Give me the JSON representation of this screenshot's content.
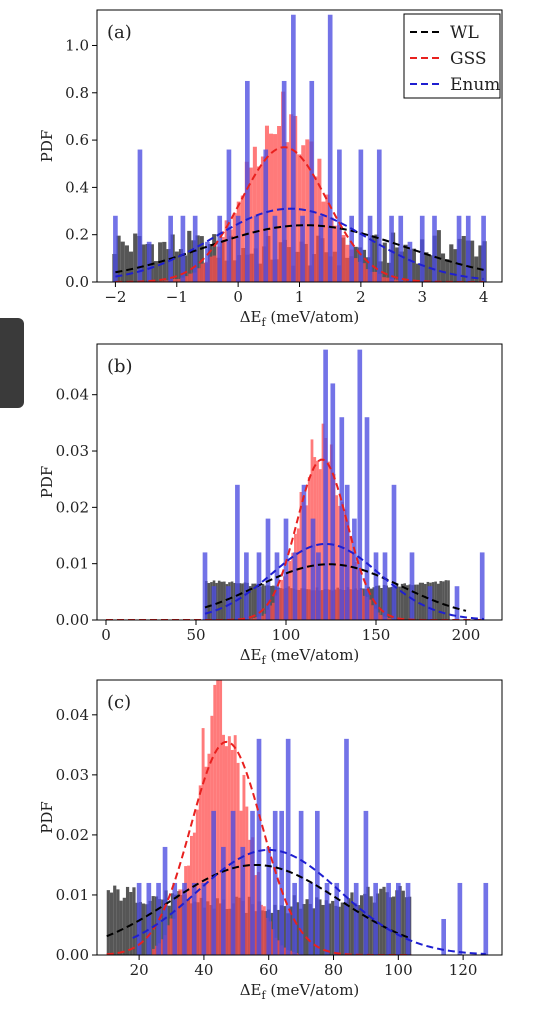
{
  "colors": {
    "wl": "#000000",
    "gss": "#e8211f",
    "enum": "#1f1fd0",
    "wl_bar": "#4d4d4d",
    "gss_bar": "#ff4d4d",
    "enum_bar": "#4b4be0"
  },
  "legend": [
    {
      "label": "WL",
      "color": "#000000"
    },
    {
      "label": "GSS",
      "color": "#e8211f"
    },
    {
      "label": "Enum",
      "color": "#1f1fd0"
    }
  ],
  "chart_data": [
    {
      "type": "bar",
      "panel_label": "(a)",
      "xlabel": "ΔE",
      "xlabel_sub": "f",
      "xlabel_unit": " (meV/atom)",
      "ylabel": "PDF",
      "xlim": [
        -2.3,
        4.3
      ],
      "ylim": [
        0,
        1.15
      ],
      "xticks": [
        -2,
        -1,
        0,
        1,
        2,
        3,
        4
      ],
      "xtick_labels": [
        "−2",
        "−1",
        "0",
        "1",
        "2",
        "3",
        "4"
      ],
      "yticks": [
        0.0,
        0.2,
        0.4,
        0.6,
        0.8,
        1.0
      ],
      "ytick_labels": [
        "0.0",
        "0.2",
        "0.4",
        "0.6",
        "0.8",
        "1.0"
      ],
      "series": [
        {
          "name": "WL",
          "style": "dashed-fit",
          "mean": 1.1,
          "sd": 1.65,
          "peak": 0.24,
          "x_range": [
            -2.0,
            4.0
          ]
        },
        {
          "name": "GSS",
          "style": "dashed-fit",
          "mean": 0.75,
          "sd": 0.7,
          "peak": 0.57,
          "x_range": [
            -2.0,
            4.0
          ]
        },
        {
          "name": "Enum",
          "style": "dashed-fit",
          "mean": 0.85,
          "sd": 1.25,
          "peak": 0.31,
          "x_range": [
            -2.0,
            4.0
          ]
        }
      ],
      "histograms": {
        "wl": {
          "range": [
            -2.05,
            4.05
          ],
          "bins": 90,
          "base": 0.17,
          "amp": 0.07,
          "mean": 1.1,
          "sd": 1.65
        },
        "gss": {
          "range": [
            -1.6,
            3.0
          ],
          "bins": 70,
          "mean": 0.75,
          "sd": 0.62,
          "peak": 0.72
        },
        "enum_spikes": [
          [
            -2.0,
            0.28
          ],
          [
            -1.6,
            0.56
          ],
          [
            -1.45,
            0.17
          ],
          [
            -1.1,
            0.28
          ],
          [
            -0.9,
            0.28
          ],
          [
            -0.7,
            0.28
          ],
          [
            -0.5,
            0.17
          ],
          [
            -0.3,
            0.28
          ],
          [
            -0.15,
            0.56
          ],
          [
            0.0,
            0.28
          ],
          [
            0.15,
            0.85
          ],
          [
            0.3,
            0.28
          ],
          [
            0.45,
            0.56
          ],
          [
            0.6,
            0.28
          ],
          [
            0.75,
            0.85
          ],
          [
            0.9,
            1.13
          ],
          [
            1.05,
            0.28
          ],
          [
            1.2,
            0.85
          ],
          [
            1.35,
            0.28
          ],
          [
            1.5,
            1.13
          ],
          [
            1.65,
            0.56
          ],
          [
            1.85,
            0.28
          ],
          [
            2.0,
            0.56
          ],
          [
            2.15,
            0.28
          ],
          [
            2.3,
            0.56
          ],
          [
            2.5,
            0.28
          ],
          [
            2.65,
            0.28
          ],
          [
            2.8,
            0.17
          ],
          [
            3.0,
            0.28
          ],
          [
            3.2,
            0.28
          ],
          [
            3.6,
            0.28
          ],
          [
            3.75,
            0.28
          ],
          [
            4.0,
            0.28
          ]
        ]
      }
    },
    {
      "type": "bar",
      "panel_label": "(b)",
      "xlabel": "ΔE",
      "xlabel_sub": "f",
      "xlabel_unit": " (meV/atom)",
      "ylabel": "PDF",
      "xlim": [
        -5,
        220
      ],
      "ylim": [
        0,
        0.049
      ],
      "xticks": [
        0,
        50,
        100,
        150,
        200
      ],
      "xtick_labels": [
        "0",
        "50",
        "100",
        "150",
        "200"
      ],
      "yticks": [
        0.0,
        0.01,
        0.02,
        0.03,
        0.04
      ],
      "ytick_labels": [
        "0.00",
        "0.01",
        "0.02",
        "0.03",
        "0.04"
      ],
      "series": [
        {
          "name": "WL",
          "style": "dashed-fit",
          "mean": 124,
          "sd": 40,
          "peak": 0.0099,
          "x_range": [
            55,
            200
          ]
        },
        {
          "name": "GSS",
          "style": "dashed-fit",
          "mean": 120,
          "sd": 14,
          "peak": 0.0285,
          "x_range": [
            0,
            210
          ]
        },
        {
          "name": "Enum",
          "style": "dashed-fit",
          "mean": 122,
          "sd": 30,
          "peak": 0.0135,
          "x_range": [
            55,
            210
          ]
        }
      ],
      "histograms": {
        "wl": {
          "range": [
            55,
            191
          ],
          "bins": 95,
          "base": 0.0073,
          "amp": 0.0003,
          "mean": 124,
          "sd": 40
        },
        "gss": {
          "range": [
            60,
            175
          ],
          "bins": 75,
          "mean": 120,
          "sd": 12.5,
          "peak": 0.031
        },
        "enum_spikes": [
          [
            55,
            0.012
          ],
          [
            60,
            0.006
          ],
          [
            68,
            0.006
          ],
          [
            73,
            0.024
          ],
          [
            78,
            0.012
          ],
          [
            85,
            0.012
          ],
          [
            90,
            0.018
          ],
          [
            95,
            0.012
          ],
          [
            100,
            0.018
          ],
          [
            105,
            0.012
          ],
          [
            110,
            0.024
          ],
          [
            115,
            0.018
          ],
          [
            118,
            0.012
          ],
          [
            122,
            0.048
          ],
          [
            126,
            0.042
          ],
          [
            131,
            0.036
          ],
          [
            134,
            0.024
          ],
          [
            138,
            0.018
          ],
          [
            141,
            0.048
          ],
          [
            145,
            0.036
          ],
          [
            150,
            0.012
          ],
          [
            155,
            0.012
          ],
          [
            160,
            0.024
          ],
          [
            170,
            0.012
          ],
          [
            180,
            0.006
          ],
          [
            195,
            0.006
          ],
          [
            209,
            0.012
          ]
        ]
      }
    },
    {
      "type": "bar",
      "panel_label": "(c)",
      "xlabel": "ΔE",
      "xlabel_sub": "f",
      "xlabel_unit": " (meV/atom)",
      "ylabel": "PDF",
      "xlim": [
        7,
        132
      ],
      "ylim": [
        0,
        0.0458
      ],
      "xticks": [
        20,
        40,
        60,
        80,
        100,
        120
      ],
      "xtick_labels": [
        "20",
        "40",
        "60",
        "80",
        "100",
        "120"
      ],
      "yticks": [
        0.0,
        0.01,
        0.02,
        0.03,
        0.04
      ],
      "ytick_labels": [
        "0.00",
        "0.01",
        "0.02",
        "0.03",
        "0.04"
      ],
      "series": [
        {
          "name": "WL",
          "style": "dashed-fit",
          "mean": 56,
          "sd": 26,
          "peak": 0.015,
          "x_range": [
            10,
            104
          ]
        },
        {
          "name": "GSS",
          "style": "dashed-fit",
          "mean": 47,
          "sd": 11,
          "peak": 0.0355,
          "x_range": [
            10,
            104
          ]
        },
        {
          "name": "Enum",
          "style": "dashed-fit",
          "mean": 60,
          "sd": 22,
          "peak": 0.0175,
          "x_range": [
            18,
            127
          ]
        }
      ],
      "histograms": {
        "wl": {
          "range": [
            10,
            104
          ],
          "bins": 95,
          "base": 0.011,
          "amp": 0.0015,
          "mean": 56,
          "sd": 26
        },
        "gss": {
          "range": [
            24,
            78
          ],
          "bins": 60,
          "mean": 45,
          "sd": 7.5,
          "peak": 0.043
        },
        "enum_spikes": [
          [
            20,
            0.012
          ],
          [
            23,
            0.012
          ],
          [
            26,
            0.012
          ],
          [
            28,
            0.018
          ],
          [
            31,
            0.012
          ],
          [
            34,
            0.012
          ],
          [
            37,
            0.012
          ],
          [
            40,
            0.012
          ],
          [
            43,
            0.024
          ],
          [
            46,
            0.018
          ],
          [
            49,
            0.024
          ],
          [
            52,
            0.018
          ],
          [
            55,
            0.024
          ],
          [
            57,
            0.036
          ],
          [
            60,
            0.018
          ],
          [
            62,
            0.024
          ],
          [
            64,
            0.024
          ],
          [
            66,
            0.036
          ],
          [
            68,
            0.012
          ],
          [
            70,
            0.024
          ],
          [
            73,
            0.012
          ],
          [
            75,
            0.024
          ],
          [
            78,
            0.012
          ],
          [
            81,
            0.012
          ],
          [
            84,
            0.036
          ],
          [
            87,
            0.012
          ],
          [
            90,
            0.024
          ],
          [
            93,
            0.012
          ],
          [
            97,
            0.012
          ],
          [
            100,
            0.012
          ],
          [
            103,
            0.012
          ],
          [
            114,
            0.006
          ],
          [
            119,
            0.012
          ],
          [
            127,
            0.012
          ]
        ]
      }
    }
  ]
}
